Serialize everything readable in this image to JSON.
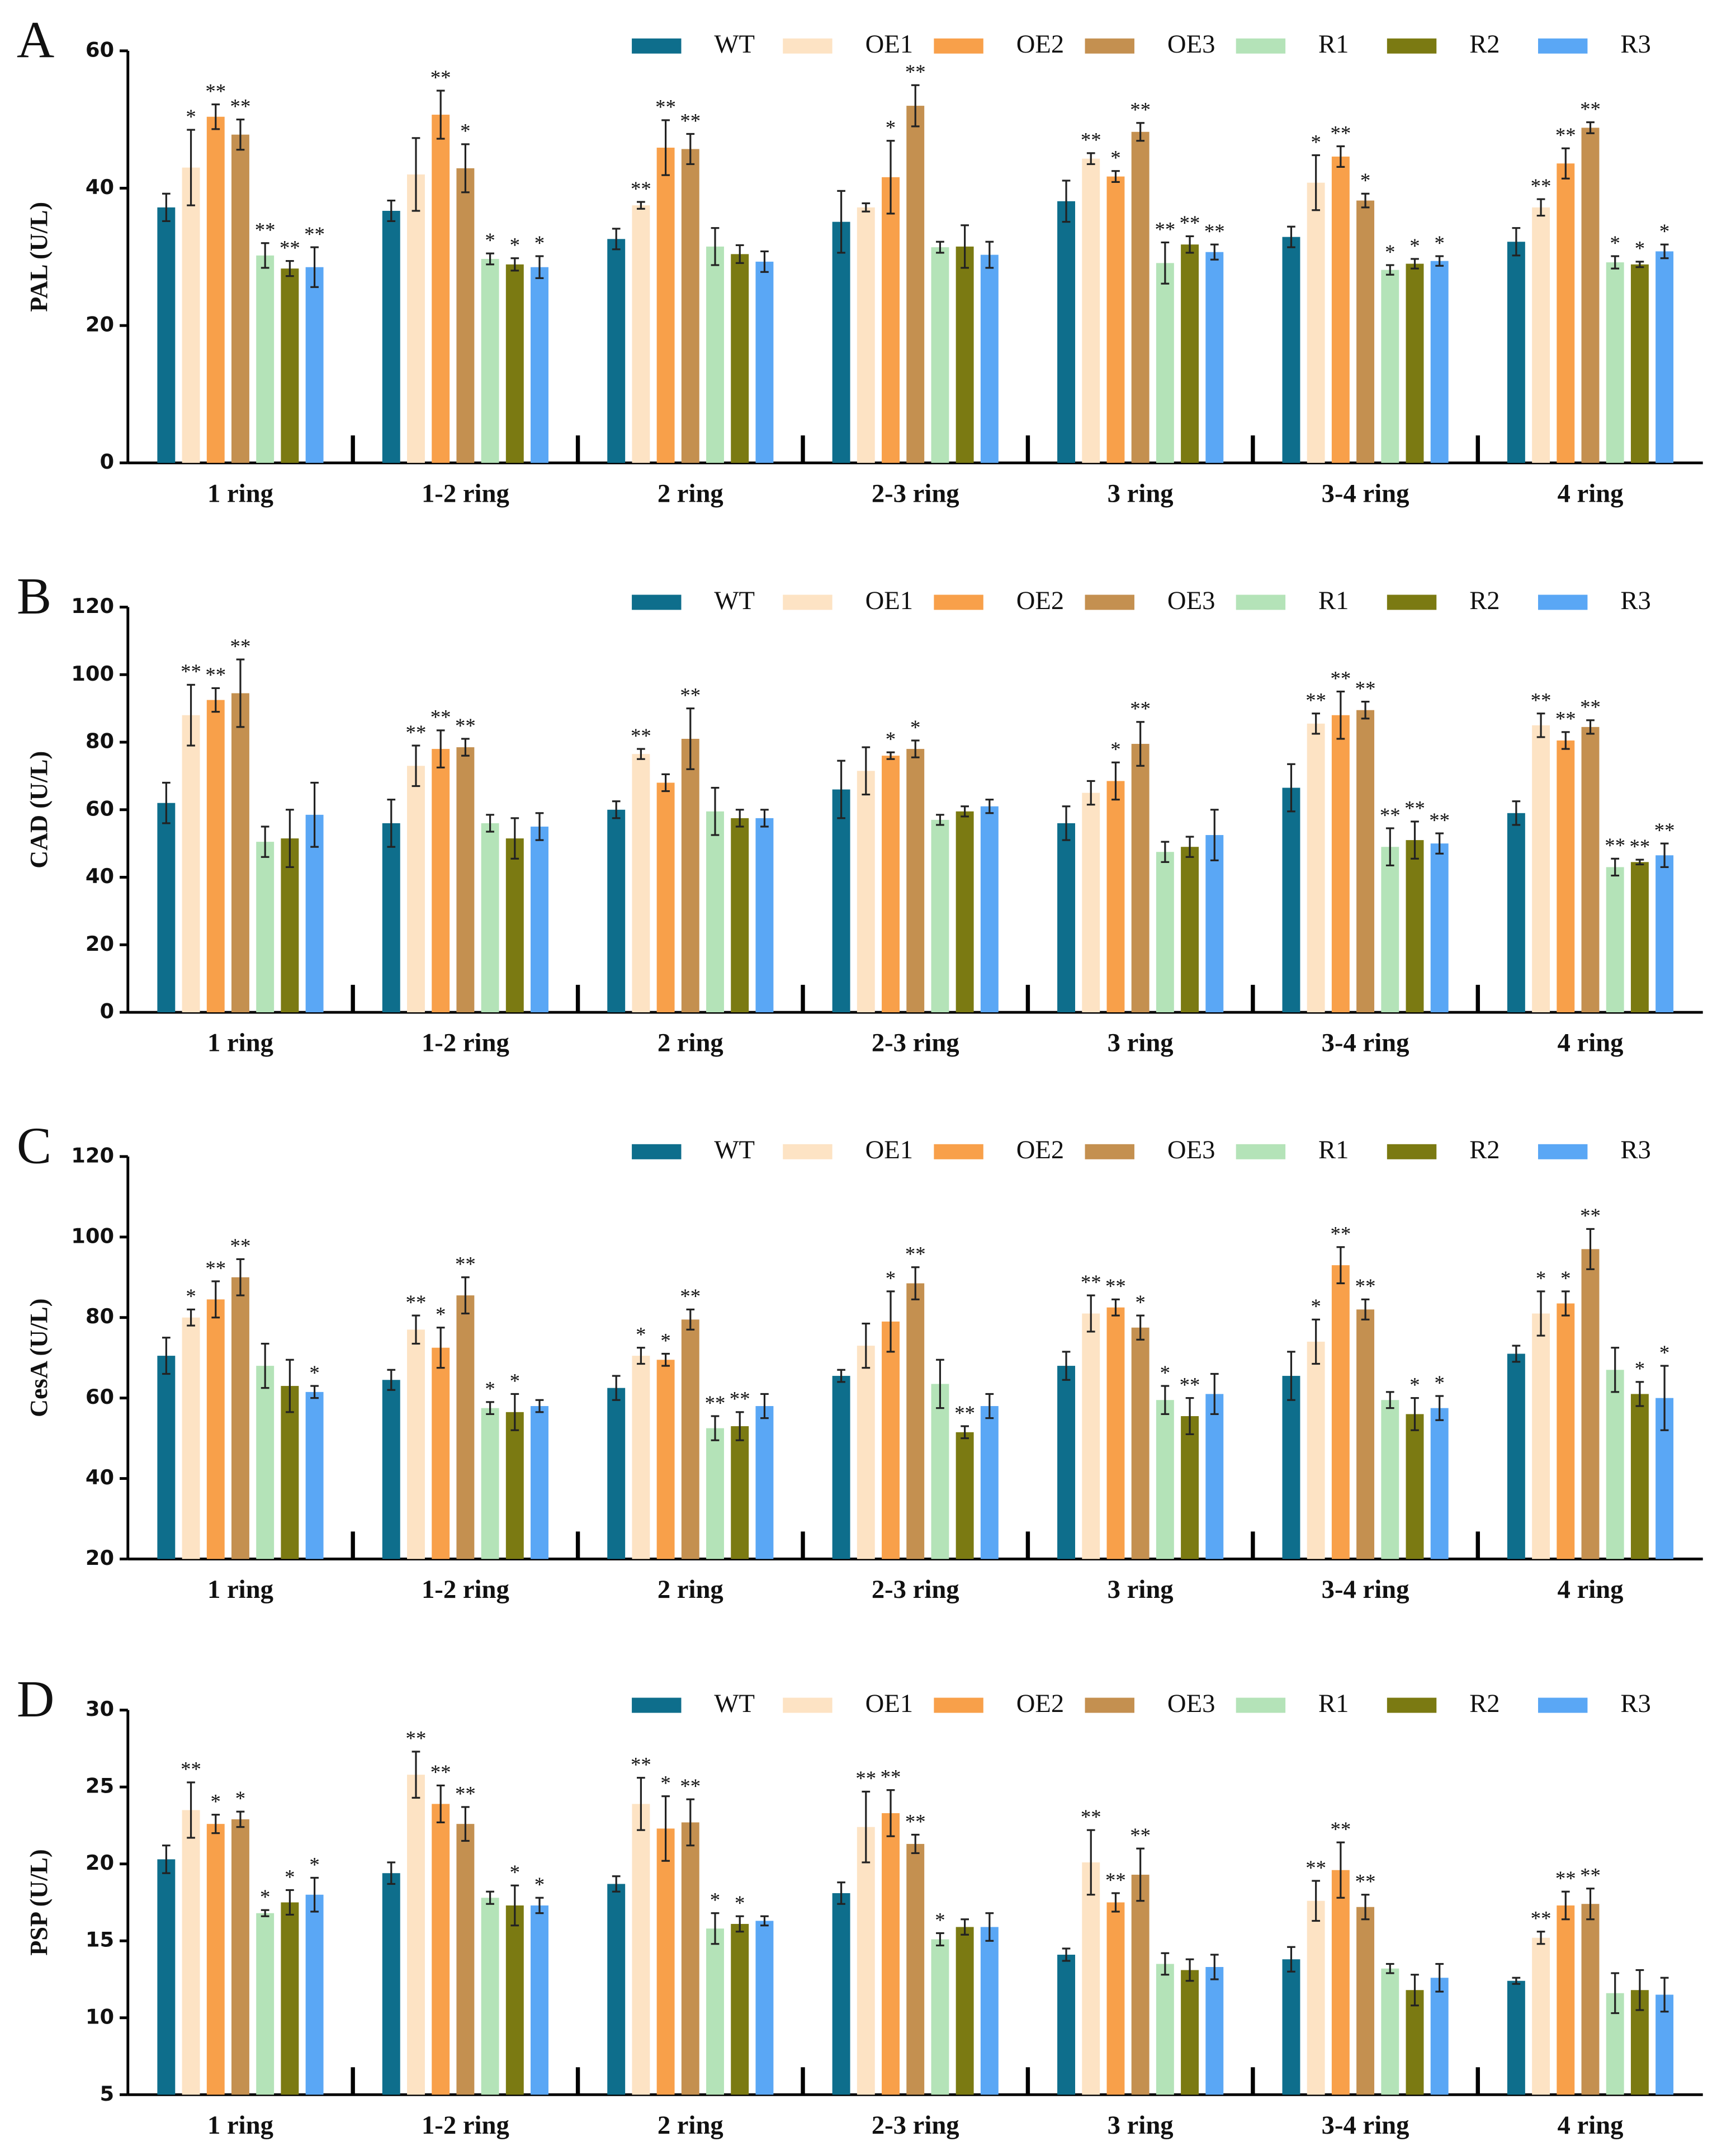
{
  "chart_data": [
    {
      "type": "bar",
      "label": "A",
      "ylabel": "PAL (U/L)",
      "categories": [
        "1 ring",
        "1-2 ring",
        "2 ring",
        "2-3 ring",
        "3 ring",
        "3-4 ring",
        "4 ring"
      ],
      "ylim": [
        0,
        60
      ],
      "yticks": [
        0,
        20,
        40,
        60
      ],
      "series": [
        {
          "name": "WT",
          "color": "#0e6e8c",
          "values": [
            37.2,
            36.7,
            32.6,
            35.1,
            38.1,
            32.9,
            32.2
          ],
          "errors": [
            2,
            1.5,
            1.5,
            4.5,
            3,
            1.5,
            2
          ],
          "annotations": [
            null,
            null,
            null,
            null,
            null,
            null,
            null
          ]
        },
        {
          "name": "OE1",
          "color": "#fde3c4",
          "values": [
            43,
            42,
            37.5,
            37.2,
            44.3,
            40.8,
            37.2
          ],
          "errors": [
            5.5,
            5.3,
            0.5,
            0.6,
            0.8,
            4,
            1.2
          ],
          "annotations": [
            "*",
            null,
            "**",
            null,
            "**",
            "*",
            "**"
          ]
        },
        {
          "name": "OE2",
          "color": "#f8a04a",
          "values": [
            50.4,
            50.7,
            45.9,
            41.6,
            41.7,
            44.6,
            43.6
          ],
          "errors": [
            1.8,
            3.5,
            4,
            5.3,
            0.8,
            1.5,
            2.2
          ],
          "annotations": [
            "**",
            "**",
            "**",
            "*",
            "*",
            "**",
            "**"
          ]
        },
        {
          "name": "OE3",
          "color": "#c49050",
          "values": [
            47.8,
            42.9,
            45.7,
            52,
            48.2,
            38.2,
            48.8
          ],
          "errors": [
            2.2,
            3.5,
            2.2,
            3,
            1.3,
            1,
            0.8
          ],
          "annotations": [
            "**",
            "*",
            "**",
            "**",
            "**",
            "*",
            "**"
          ]
        },
        {
          "name": "R1",
          "color": "#b4e3b8",
          "values": [
            30.2,
            29.7,
            31.5,
            31.4,
            29.1,
            28.1,
            29.2
          ],
          "errors": [
            1.8,
            0.8,
            2.7,
            0.8,
            3,
            0.7,
            0.9
          ],
          "annotations": [
            "**",
            "*",
            null,
            null,
            "**",
            "*",
            "*"
          ]
        },
        {
          "name": "R2",
          "color": "#7b7a12",
          "values": [
            28.3,
            28.9,
            30.4,
            31.5,
            31.8,
            29,
            28.9
          ],
          "errors": [
            1.1,
            0.9,
            1.3,
            3.1,
            1.2,
            0.7,
            0.4
          ],
          "annotations": [
            "**",
            "*",
            null,
            null,
            "**",
            "*",
            "*"
          ]
        },
        {
          "name": "R3",
          "color": "#5aa7f5",
          "values": [
            28.5,
            28.5,
            29.3,
            30.3,
            30.7,
            29.4,
            30.8
          ],
          "errors": [
            2.9,
            1.6,
            1.5,
            1.9,
            1.1,
            0.7,
            1
          ],
          "annotations": [
            "**",
            "*",
            null,
            null,
            "**",
            "*",
            "*"
          ]
        }
      ]
    },
    {
      "type": "bar",
      "label": "B",
      "ylabel": "CAD (U/L)",
      "categories": [
        "1 ring",
        "1-2 ring",
        "2 ring",
        "2-3 ring",
        "3 ring",
        "3-4 ring",
        "4 ring"
      ],
      "ylim": [
        0,
        120
      ],
      "yticks": [
        0,
        20,
        40,
        60,
        80,
        100,
        120
      ],
      "series": [
        {
          "name": "WT",
          "color": "#0e6e8c",
          "values": [
            62,
            56,
            60,
            66,
            56,
            66.5,
            59
          ],
          "errors": [
            6,
            7,
            2.5,
            8.5,
            5,
            7,
            3.5
          ],
          "annotations": [
            null,
            null,
            null,
            null,
            null,
            null,
            null
          ]
        },
        {
          "name": "OE1",
          "color": "#fde3c4",
          "values": [
            88,
            73,
            76.5,
            71.5,
            65,
            85.5,
            85
          ],
          "errors": [
            9,
            6,
            1.5,
            7,
            3.5,
            3,
            3.5
          ],
          "annotations": [
            "**",
            "**",
            "**",
            null,
            null,
            "**",
            "**"
          ]
        },
        {
          "name": "OE2",
          "color": "#f8a04a",
          "values": [
            92.5,
            78,
            68,
            76,
            68.5,
            88,
            80.5
          ],
          "errors": [
            3.5,
            5.5,
            2.5,
            1,
            5.5,
            7,
            2.5
          ],
          "annotations": [
            "**",
            "**",
            null,
            "*",
            "*",
            "**",
            "**"
          ]
        },
        {
          "name": "OE3",
          "color": "#c49050",
          "values": [
            94.5,
            78.5,
            81,
            78,
            79.5,
            89.5,
            84.5
          ],
          "errors": [
            10,
            2.5,
            9,
            2.5,
            6.5,
            2.5,
            2
          ],
          "annotations": [
            "**",
            "**",
            "**",
            "*",
            "**",
            "**",
            "**"
          ]
        },
        {
          "name": "R1",
          "color": "#b4e3b8",
          "values": [
            50.5,
            56,
            59.5,
            57,
            47.5,
            49,
            43
          ],
          "errors": [
            4.5,
            2.5,
            7,
            1.5,
            3,
            5.5,
            2.5
          ],
          "annotations": [
            null,
            null,
            null,
            null,
            null,
            "**",
            "**"
          ]
        },
        {
          "name": "R2",
          "color": "#7b7a12",
          "values": [
            51.5,
            51.5,
            57.5,
            59.5,
            49,
            51,
            44.5
          ],
          "errors": [
            8.5,
            6,
            2.5,
            1.5,
            3,
            5.5,
            0.7
          ],
          "annotations": [
            null,
            null,
            null,
            null,
            null,
            "**",
            "**"
          ]
        },
        {
          "name": "R3",
          "color": "#5aa7f5",
          "values": [
            58.5,
            55,
            57.5,
            61,
            52.5,
            50,
            46.5
          ],
          "errors": [
            9.5,
            4,
            2.5,
            2,
            7.5,
            3,
            3.5
          ],
          "annotations": [
            null,
            null,
            null,
            null,
            null,
            "**",
            "**"
          ]
        }
      ]
    },
    {
      "type": "bar",
      "label": "C",
      "ylabel": "CesA (U/L)",
      "categories": [
        "1 ring",
        "1-2 ring",
        "2 ring",
        "2-3 ring",
        "3 ring",
        "3-4 ring",
        "4 ring"
      ],
      "ylim": [
        20,
        120
      ],
      "yticks": [
        20,
        40,
        60,
        80,
        100,
        120
      ],
      "series": [
        {
          "name": "WT",
          "color": "#0e6e8c",
          "values": [
            70.5,
            64.5,
            62.5,
            65.5,
            68,
            65.5,
            71
          ],
          "errors": [
            4.5,
            2.5,
            3,
            1.5,
            3.5,
            6,
            2
          ],
          "annotations": [
            null,
            null,
            null,
            null,
            null,
            null,
            null
          ]
        },
        {
          "name": "OE1",
          "color": "#fde3c4",
          "values": [
            80,
            77,
            70.5,
            73,
            81,
            74,
            81
          ],
          "errors": [
            2,
            3.5,
            2,
            5.5,
            4.5,
            5.5,
            5.5
          ],
          "annotations": [
            "*",
            "**",
            "*",
            null,
            "**",
            "*",
            "*"
          ]
        },
        {
          "name": "OE2",
          "color": "#f8a04a",
          "values": [
            84.5,
            72.5,
            69.5,
            79,
            82.5,
            93,
            83.5
          ],
          "errors": [
            4.5,
            5,
            1.5,
            7.5,
            2,
            4.5,
            3
          ],
          "annotations": [
            "**",
            "*",
            "*",
            "*",
            "**",
            "**",
            "*"
          ]
        },
        {
          "name": "OE3",
          "color": "#c49050",
          "values": [
            90,
            85.5,
            79.5,
            88.5,
            77.5,
            82,
            97
          ],
          "errors": [
            4.5,
            4.5,
            2.5,
            4,
            3,
            2.5,
            5
          ],
          "annotations": [
            "**",
            "**",
            "**",
            "**",
            "*",
            "**",
            "**"
          ]
        },
        {
          "name": "R1",
          "color": "#b4e3b8",
          "values": [
            68,
            57.5,
            52.5,
            63.5,
            59.5,
            59.5,
            67
          ],
          "errors": [
            5.5,
            1.5,
            3,
            6,
            3.5,
            2,
            5.5
          ],
          "annotations": [
            null,
            "*",
            "**",
            null,
            "*",
            null,
            null
          ]
        },
        {
          "name": "R2",
          "color": "#7b7a12",
          "values": [
            63,
            56.5,
            53,
            51.5,
            55.5,
            56,
            61
          ],
          "errors": [
            6.5,
            4.5,
            3.5,
            1.5,
            4.5,
            4,
            3
          ],
          "annotations": [
            null,
            "*",
            "**",
            "**",
            "**",
            "*",
            "*"
          ]
        },
        {
          "name": "R3",
          "color": "#5aa7f5",
          "values": [
            61.5,
            58,
            58,
            58,
            61,
            57.5,
            60
          ],
          "errors": [
            1.5,
            1.5,
            3,
            3,
            5,
            3,
            8
          ],
          "annotations": [
            "*",
            null,
            null,
            null,
            null,
            "*",
            "*"
          ]
        }
      ]
    },
    {
      "type": "bar",
      "label": "D",
      "ylabel": "PSP (U/L)",
      "categories": [
        "1 ring",
        "1-2 ring",
        "2 ring",
        "2-3 ring",
        "3 ring",
        "3-4 ring",
        "4 ring"
      ],
      "ylim": [
        5,
        30
      ],
      "yticks": [
        5,
        10,
        15,
        20,
        25,
        30
      ],
      "series": [
        {
          "name": "WT",
          "color": "#0e6e8c",
          "values": [
            20.3,
            19.4,
            18.7,
            18.1,
            14.1,
            13.8,
            12.4
          ],
          "errors": [
            0.9,
            0.7,
            0.5,
            0.7,
            0.4,
            0.8,
            0.2
          ],
          "annotations": [
            null,
            null,
            null,
            null,
            null,
            null,
            null
          ]
        },
        {
          "name": "OE1",
          "color": "#fde3c4",
          "values": [
            23.5,
            25.8,
            23.9,
            22.4,
            20.1,
            17.6,
            15.2
          ],
          "errors": [
            1.8,
            1.5,
            1.7,
            2.3,
            2.1,
            1.3,
            0.4
          ],
          "annotations": [
            "**",
            "**",
            "**",
            "**",
            "**",
            "**",
            "**"
          ]
        },
        {
          "name": "OE2",
          "color": "#f8a04a",
          "values": [
            22.6,
            23.9,
            22.3,
            23.3,
            17.5,
            19.6,
            17.3
          ],
          "errors": [
            0.6,
            1.2,
            2.1,
            1.5,
            0.6,
            1.8,
            0.9
          ],
          "annotations": [
            "*",
            "**",
            "*",
            "**",
            "**",
            "**",
            "**"
          ]
        },
        {
          "name": "OE3",
          "color": "#c49050",
          "values": [
            22.9,
            22.6,
            22.7,
            21.3,
            19.3,
            17.2,
            17.4
          ],
          "errors": [
            0.5,
            1.1,
            1.5,
            0.6,
            1.7,
            0.8,
            1
          ],
          "annotations": [
            "*",
            "**",
            "**",
            "**",
            "**",
            "**",
            "**"
          ]
        },
        {
          "name": "R1",
          "color": "#b4e3b8",
          "values": [
            16.8,
            17.8,
            15.8,
            15.1,
            13.5,
            13.2,
            11.6
          ],
          "errors": [
            0.2,
            0.4,
            1,
            0.4,
            0.7,
            0.3,
            1.3
          ],
          "annotations": [
            "*",
            null,
            "*",
            "*",
            null,
            null,
            null
          ]
        },
        {
          "name": "R2",
          "color": "#7b7a12",
          "values": [
            17.5,
            17.3,
            16.1,
            15.9,
            13.1,
            11.8,
            11.8
          ],
          "errors": [
            0.8,
            1.3,
            0.5,
            0.5,
            0.7,
            1,
            1.3
          ],
          "annotations": [
            "*",
            "*",
            "*",
            null,
            null,
            null,
            null
          ]
        },
        {
          "name": "R3",
          "color": "#5aa7f5",
          "values": [
            18,
            17.3,
            16.3,
            15.9,
            13.3,
            12.6,
            11.5
          ],
          "errors": [
            1.1,
            0.5,
            0.3,
            0.9,
            0.8,
            0.9,
            1.1
          ],
          "annotations": [
            "*",
            "*",
            null,
            null,
            null,
            null,
            null
          ]
        }
      ]
    }
  ]
}
